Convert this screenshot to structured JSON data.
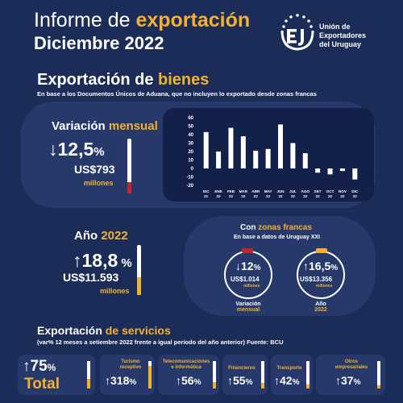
{
  "header": {
    "title_part1": "Informe de ",
    "title_part2": "exportación",
    "title_line2": "Diciembre 2022",
    "logo_text": [
      "Unión de",
      "Exportadores",
      "del Uruguay"
    ]
  },
  "goods": {
    "title_part1": "Exportación de ",
    "title_part2": "bienes",
    "subtitle": "En base a los Documentos Únicos de Aduana, que no incluyen lo exportado desde zonas francas",
    "monthly": {
      "label_part1": "Variación ",
      "label_part2": "mensual",
      "arrow": "↓",
      "value": "12,5",
      "pct": "%",
      "amount": "US$793",
      "unit": "millones",
      "bar_color": "#c0262b"
    },
    "year": {
      "label_part1": "Año ",
      "label_part2": "2022",
      "arrow": "↑",
      "value": "18,8",
      "pct": " %",
      "amount": "US$11.593",
      "unit": "millones",
      "bar_color": "#f2b230"
    }
  },
  "chart_data": {
    "type": "bar",
    "categories": [
      "DIC 21",
      "ENE 22",
      "FEB 22",
      "MAR 22",
      "ABR 22",
      "MAY 22",
      "JUN 22",
      "JUL 22",
      "AGO 22",
      "SET 22",
      "OCT 22",
      "NOV 22",
      "DIC 22"
    ],
    "tick_labels_top": [
      "DIC",
      "ENE",
      "FEB",
      "MAR",
      "ABR",
      "MAY",
      "JUN",
      "JUL",
      "AGO",
      "SET",
      "OCT",
      "NOV",
      "DIC"
    ],
    "tick_labels_bottom": [
      "21",
      "22",
      "22",
      "22",
      "22",
      "22",
      "22",
      "22",
      "22",
      "22",
      "22",
      "22",
      "22"
    ],
    "values": [
      43,
      20,
      48,
      38,
      21,
      23,
      52,
      30,
      18,
      -5,
      -7,
      -3,
      -13
    ],
    "ylim": [
      -20,
      60
    ],
    "yticks": [
      -20,
      -10,
      0,
      10,
      20,
      30,
      40,
      50,
      60
    ],
    "bar_color": "#ffffff",
    "grid": false,
    "title": "",
    "xlabel": "",
    "ylabel": ""
  },
  "free_zones": {
    "title_part1": "Con ",
    "title_part2": "zonas francas",
    "subtitle": "En base a datos de Uruguay XXI",
    "monthly": {
      "arrow": "↓",
      "value": "12",
      "pct": "%",
      "amount": "US$1.014",
      "unit": "millones",
      "caption_line1": "Variación",
      "caption_line2": "mensual",
      "ring_color": "#c0262b"
    },
    "year": {
      "arrow": "↑",
      "value": "16,5",
      "pct": "%",
      "amount": "US$13.356",
      "unit": "millones",
      "caption_line1": "Año",
      "caption_line2": "2022",
      "ring_color": "#f2b230"
    }
  },
  "services": {
    "title_part1": "Exportación ",
    "title_part2": "de servicios",
    "subtitle": "(var% 12 meses a setiembre 2022 frente a igual período del año anterior)  Fuente: BCU",
    "total": {
      "arrow": "↑",
      "value": "75",
      "pct": "%",
      "label": "Total"
    },
    "items": [
      {
        "name_line1": "Turismo",
        "name_line2": "receptivo",
        "arrow": "↑",
        "value": "318",
        "pct": "%"
      },
      {
        "name_line1": "Telecomunicaciones",
        "name_line2": "e informática",
        "arrow": "↑",
        "value": "56",
        "pct": "%"
      },
      {
        "name_line1": "Financieros",
        "name_line2": "",
        "arrow": "↑",
        "value": "55",
        "pct": "%"
      },
      {
        "name_line1": "Transporte",
        "name_line2": "",
        "arrow": "↑",
        "value": "42",
        "pct": "%"
      },
      {
        "name_line1": "Otros",
        "name_line2": "empresariales",
        "arrow": "↑",
        "value": "37",
        "pct": "%"
      }
    ]
  }
}
